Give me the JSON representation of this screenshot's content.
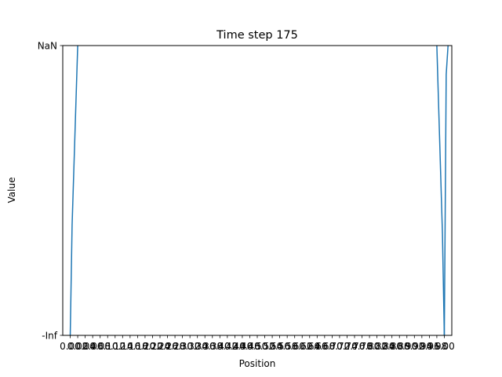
{
  "chart_data": {
    "type": "line",
    "title": "Time step 175",
    "xlabel": "Position",
    "ylabel": "Value",
    "y_tick_labels": [
      "-Inf",
      "NaN"
    ],
    "x_ticks": [
      "0.00",
      "0.02",
      "0.04",
      "0.06",
      "0.08",
      "0.10",
      "0.12",
      "0.14",
      "0.16",
      "0.18",
      "0.20",
      "0.22",
      "0.24",
      "0.26",
      "0.28",
      "0.30",
      "0.32",
      "0.34",
      "0.36",
      "0.38",
      "0.40",
      "0.42",
      "0.44",
      "0.46",
      "0.48",
      "0.50",
      "0.52",
      "0.54",
      "0.56",
      "0.58",
      "0.60",
      "0.62",
      "0.64",
      "0.66",
      "0.68",
      "0.70",
      "0.72",
      "0.74",
      "0.76",
      "0.78",
      "0.80",
      "0.82",
      "0.84",
      "0.86",
      "0.88",
      "0.90",
      "0.92",
      "0.94",
      "0.96",
      "0.98",
      "1.00"
    ],
    "xlim": [
      -0.02,
      1.02
    ],
    "ylim": [
      0,
      1
    ],
    "grid": false,
    "series": [
      {
        "color": "#1f77b4",
        "segments": [
          {
            "x": [
              0.0,
              0.005,
              0.02
            ],
            "y": [
              0.0,
              0.38,
              1.0
            ]
          },
          {
            "x": [
              0.98,
              0.995,
              1.0
            ],
            "y": [
              1.0,
              0.35,
              0.0
            ]
          },
          {
            "x": [
              1.0,
              1.005,
              1.01
            ],
            "y": [
              0.0,
              0.9,
              1.0
            ]
          }
        ]
      }
    ]
  }
}
